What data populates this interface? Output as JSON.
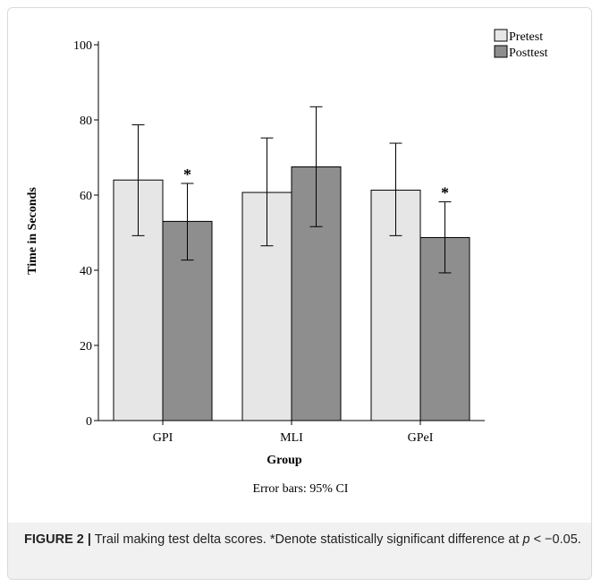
{
  "chart_data": {
    "type": "bar",
    "categories": [
      "GPI",
      "MLI",
      "GPeI"
    ],
    "series": [
      {
        "name": "Pretest",
        "color": "#e6e6e6",
        "values": [
          64,
          60.7,
          61.3
        ],
        "ci_low": [
          49.2,
          46.5,
          49.2
        ],
        "ci_high": [
          78.7,
          75.2,
          73.8
        ]
      },
      {
        "name": "Posttest",
        "color": "#8e8e8e",
        "values": [
          53,
          67.5,
          48.7
        ],
        "ci_low": [
          42.7,
          51.6,
          39.3
        ],
        "ci_high": [
          63.1,
          83.5,
          58.2
        ]
      }
    ],
    "significance_markers": [
      {
        "category": "GPI",
        "series": "Posttest",
        "text": "*"
      },
      {
        "category": "GPeI",
        "series": "Posttest",
        "text": "*"
      }
    ],
    "xlabel": "Group",
    "ylabel": "Time in Seconds",
    "ylim": [
      0,
      100
    ],
    "yticks": [
      0,
      20,
      40,
      60,
      80,
      100
    ],
    "legend_position": "top-right",
    "grid": false
  },
  "note": "Error bars: 95% CI",
  "caption": {
    "label": "FIGURE 2 |",
    "text_before": " Trail making test delta scores. *Denote statistically significant difference at ",
    "variable": "p",
    "text_after": " < −0.05."
  }
}
